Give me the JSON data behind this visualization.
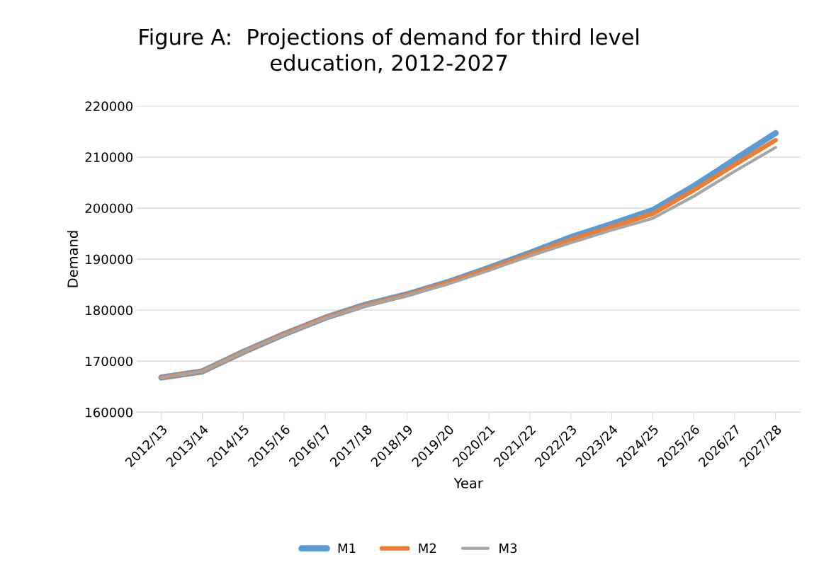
{
  "chart_data": {
    "type": "line",
    "title": "Figure A:  Projections of demand for third level\neducation, 2012-2027",
    "xlabel": "Year",
    "ylabel": "Demand",
    "categories": [
      "2012/13",
      "2013/14",
      "2014/15",
      "2015/16",
      "2016/17",
      "2017/18",
      "2018/19",
      "2019/20",
      "2020/21",
      "2021/22",
      "2022/23",
      "2023/24",
      "2024/25",
      "2025/26",
      "2026/27",
      "2027/28"
    ],
    "series": [
      {
        "name": "M1",
        "color": "#5b9bd5",
        "values": [
          166800,
          168000,
          171800,
          175300,
          178500,
          181100,
          183100,
          185500,
          188300,
          191200,
          194300,
          196900,
          199600,
          204300,
          209500,
          214700
        ]
      },
      {
        "name": "M2",
        "color": "#ed7d31",
        "values": [
          166800,
          168000,
          171800,
          175300,
          178500,
          181000,
          183000,
          185400,
          188100,
          190900,
          193800,
          196300,
          198900,
          203500,
          208500,
          213300
        ]
      },
      {
        "name": "M3",
        "color": "#a5a5a5",
        "values": [
          166800,
          168000,
          171800,
          175200,
          178400,
          180900,
          182900,
          185100,
          187800,
          190600,
          193200,
          195700,
          198000,
          202300,
          207200,
          211900
        ]
      }
    ],
    "ylim": [
      160000,
      220000
    ],
    "yticks": [
      160000,
      170000,
      180000,
      190000,
      200000,
      210000,
      220000
    ],
    "grid": "y",
    "legend": "bottom",
    "line_style": "solid",
    "marker": "none"
  }
}
